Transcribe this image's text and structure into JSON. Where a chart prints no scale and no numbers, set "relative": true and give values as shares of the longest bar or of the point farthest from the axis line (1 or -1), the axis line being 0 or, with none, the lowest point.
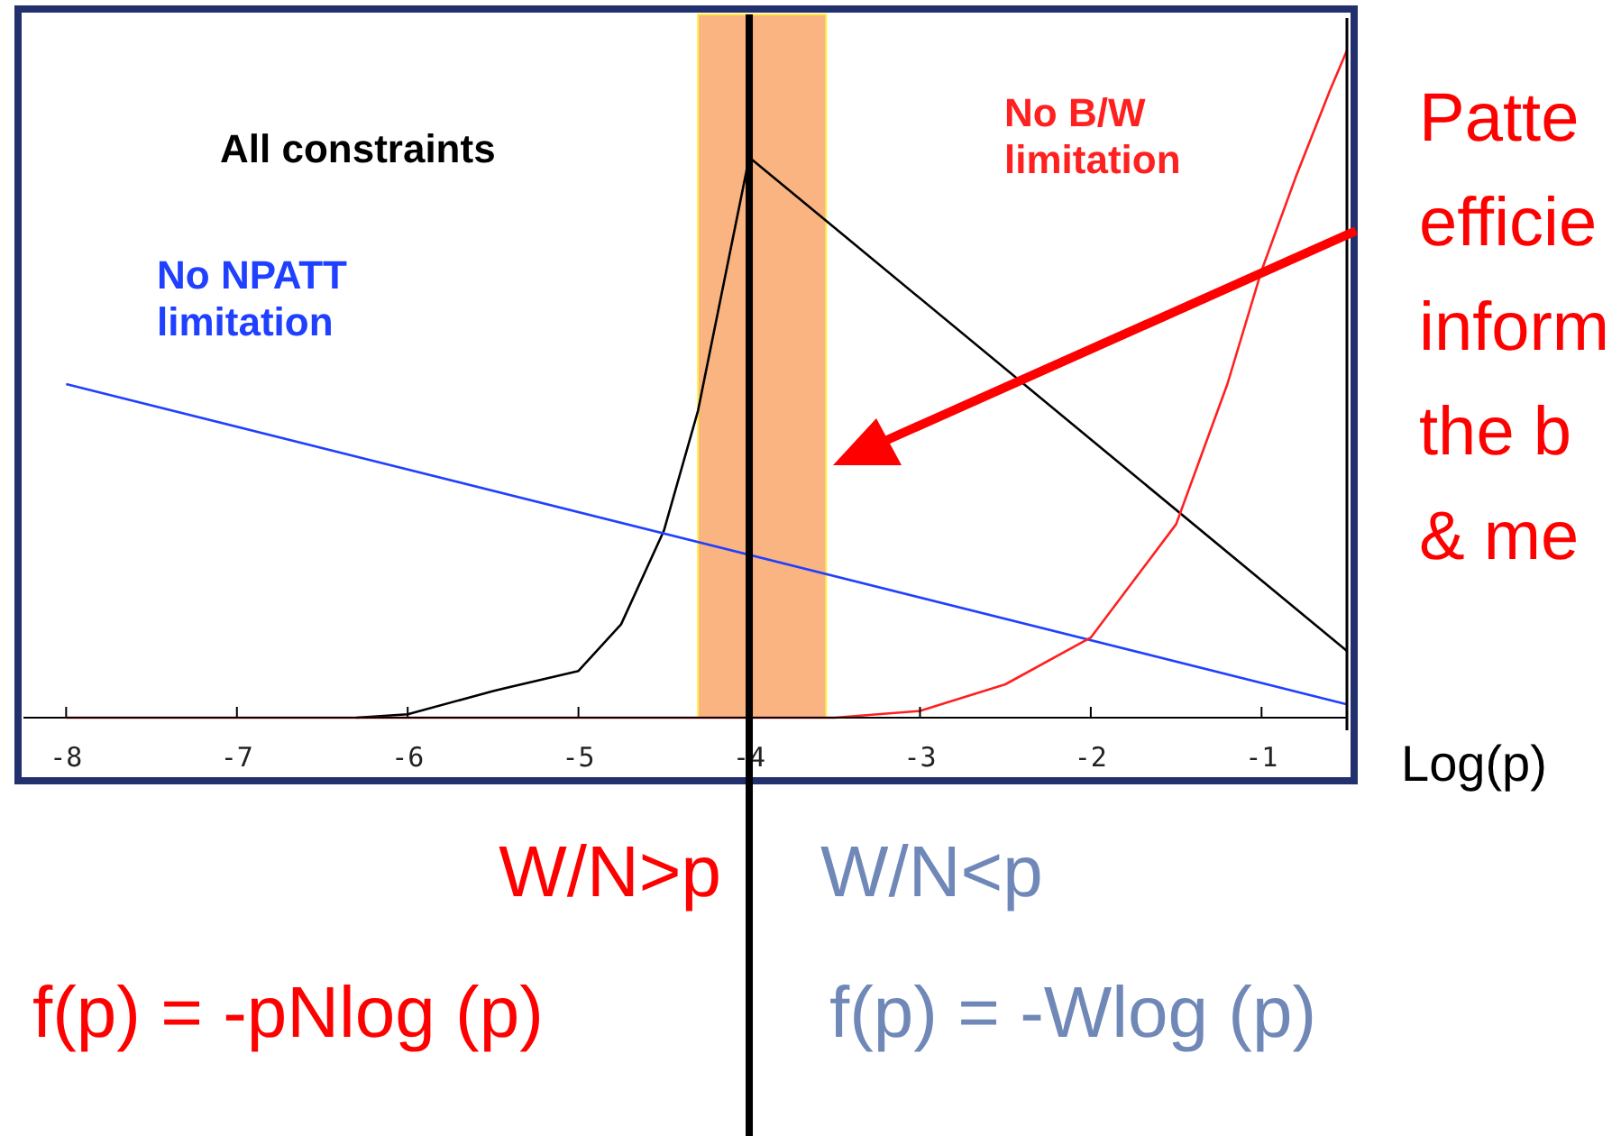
{
  "chart_data": {
    "type": "line",
    "relative": true,
    "xlabel": "Log(p)",
    "xlim": [
      -8.25,
      -0.5
    ],
    "xticks": [
      -8,
      -7,
      -6,
      -5,
      -4,
      -3,
      -2,
      -1
    ],
    "series": [
      {
        "name": "All constraints",
        "color": "#000000",
        "x": [
          -6.3,
          -6,
          -5.5,
          -5,
          -4.75,
          -4.5,
          -4.3,
          -4.15,
          -4,
          -0.5
        ],
        "values": [
          0,
          0.005,
          0.04,
          0.07,
          0.14,
          0.28,
          0.46,
          0.65,
          0.84,
          0.1
        ]
      },
      {
        "name": "No NPATT limitation",
        "color": "#2040ff",
        "x": [
          -8,
          -0.5
        ],
        "values": [
          0.5,
          0.02
        ]
      },
      {
        "name": "No B/W limitation",
        "color": "#ff2020",
        "x": [
          -8,
          -3.5,
          -3,
          -2.5,
          -2,
          -1.5,
          -1.2,
          -1,
          -0.8,
          -0.6,
          -0.5
        ],
        "values": [
          0,
          0,
          0.01,
          0.05,
          0.12,
          0.29,
          0.5,
          0.67,
          0.81,
          0.94,
          1
        ]
      }
    ],
    "bands": [
      {
        "axis": "x",
        "from": -4.3,
        "to": -3.55,
        "color": "#f9b482"
      }
    ],
    "ref_lines": [
      {
        "axis": "x",
        "value": -4,
        "color": "#000000"
      }
    ],
    "annotations": [
      "Patte",
      "efficie",
      "inform",
      "the   b",
      "& me",
      "W/N>p",
      "W/N<p",
      "f(p) = -pNlog (p)",
      "f(p) = -Wlog (p)"
    ]
  }
}
